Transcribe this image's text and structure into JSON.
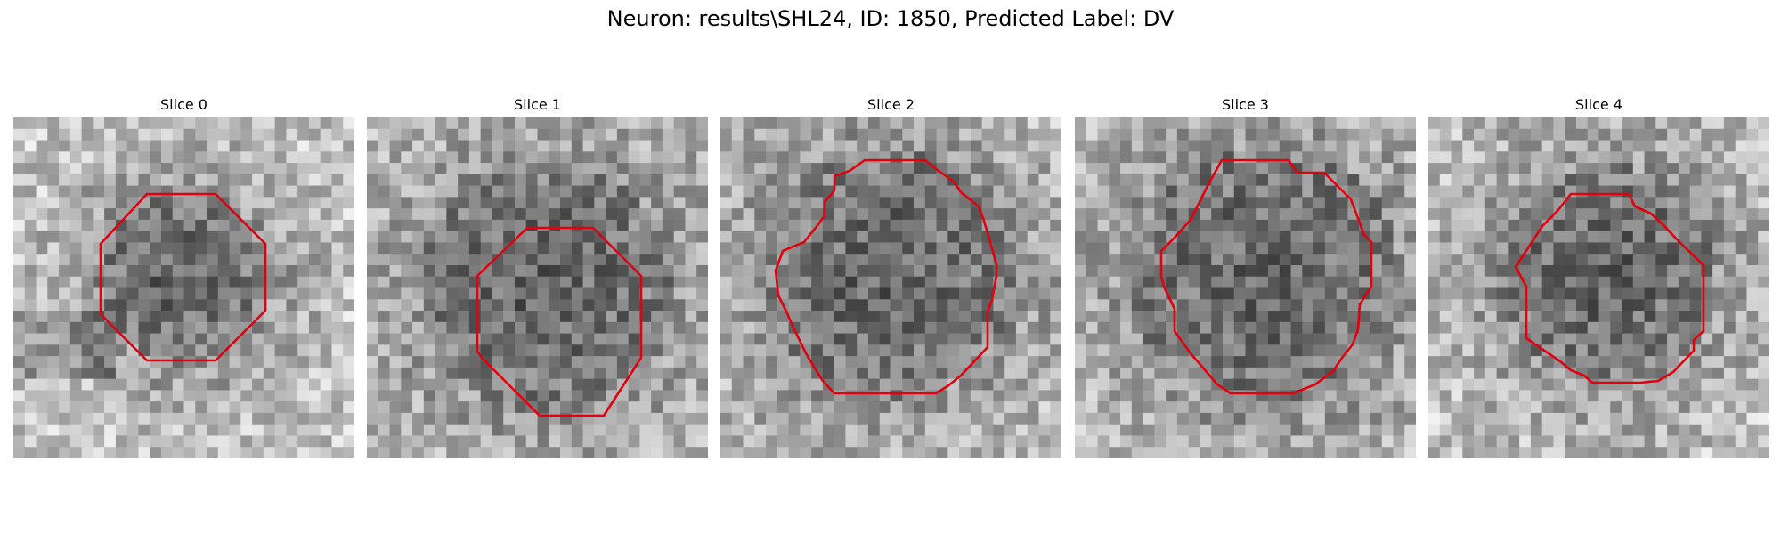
{
  "figure": {
    "title": "Neuron: results\\SHL24, ID: 1850, Predicted Label: DV"
  },
  "panels": [
    {
      "title": "Slice 0"
    },
    {
      "title": "Slice 1"
    },
    {
      "title": "Slice 2"
    },
    {
      "title": "Slice 3"
    },
    {
      "title": "Slice 4"
    }
  ],
  "colors": {
    "contour": "#e3000f",
    "background": "#ffffff"
  }
}
